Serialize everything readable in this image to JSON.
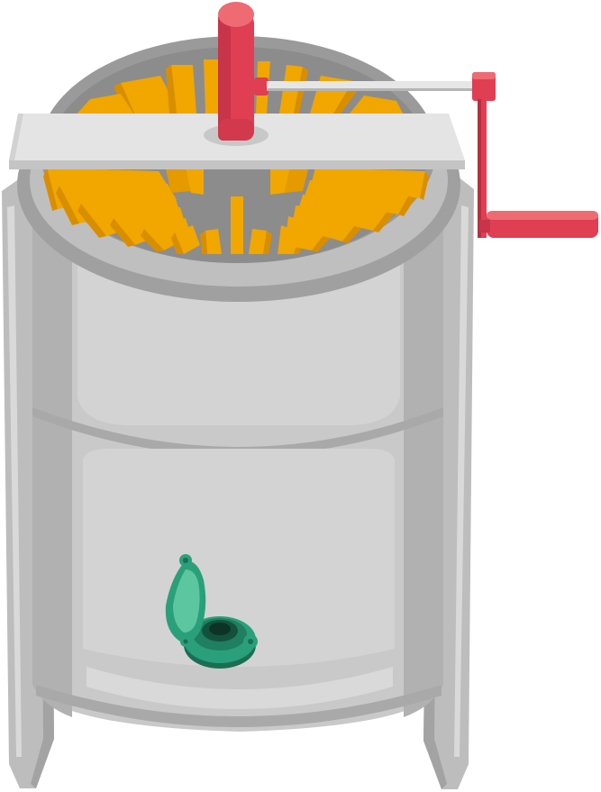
{
  "illustration": {
    "subject": "honey-extractor",
    "icon": "honey-extractor-icon"
  },
  "colors": {
    "background": "#ffffff",
    "steel_light": "#d3d3d3",
    "steel_mid": "#c6c6c6",
    "steel_dark": "#a7a7a7",
    "steel_shadow": "#8f8f8f",
    "rim_inner": "#9a9a9a",
    "crossbar": "#e4e4e4",
    "crossbar_edge": "#bdbdbd",
    "honey": "#f1a600",
    "honey_dark": "#d98e00",
    "honey_edge": "#b97700",
    "handle_red": "#e03e52",
    "handle_red_dark": "#b82f41",
    "handle_red_light": "#ee6b74",
    "rod": "#e6e6e6",
    "rod_edge": "#b5b5b5",
    "valve_green": "#2aa07a",
    "valve_green_dark": "#1a6e53",
    "valve_green_light": "#5cc6a0"
  }
}
